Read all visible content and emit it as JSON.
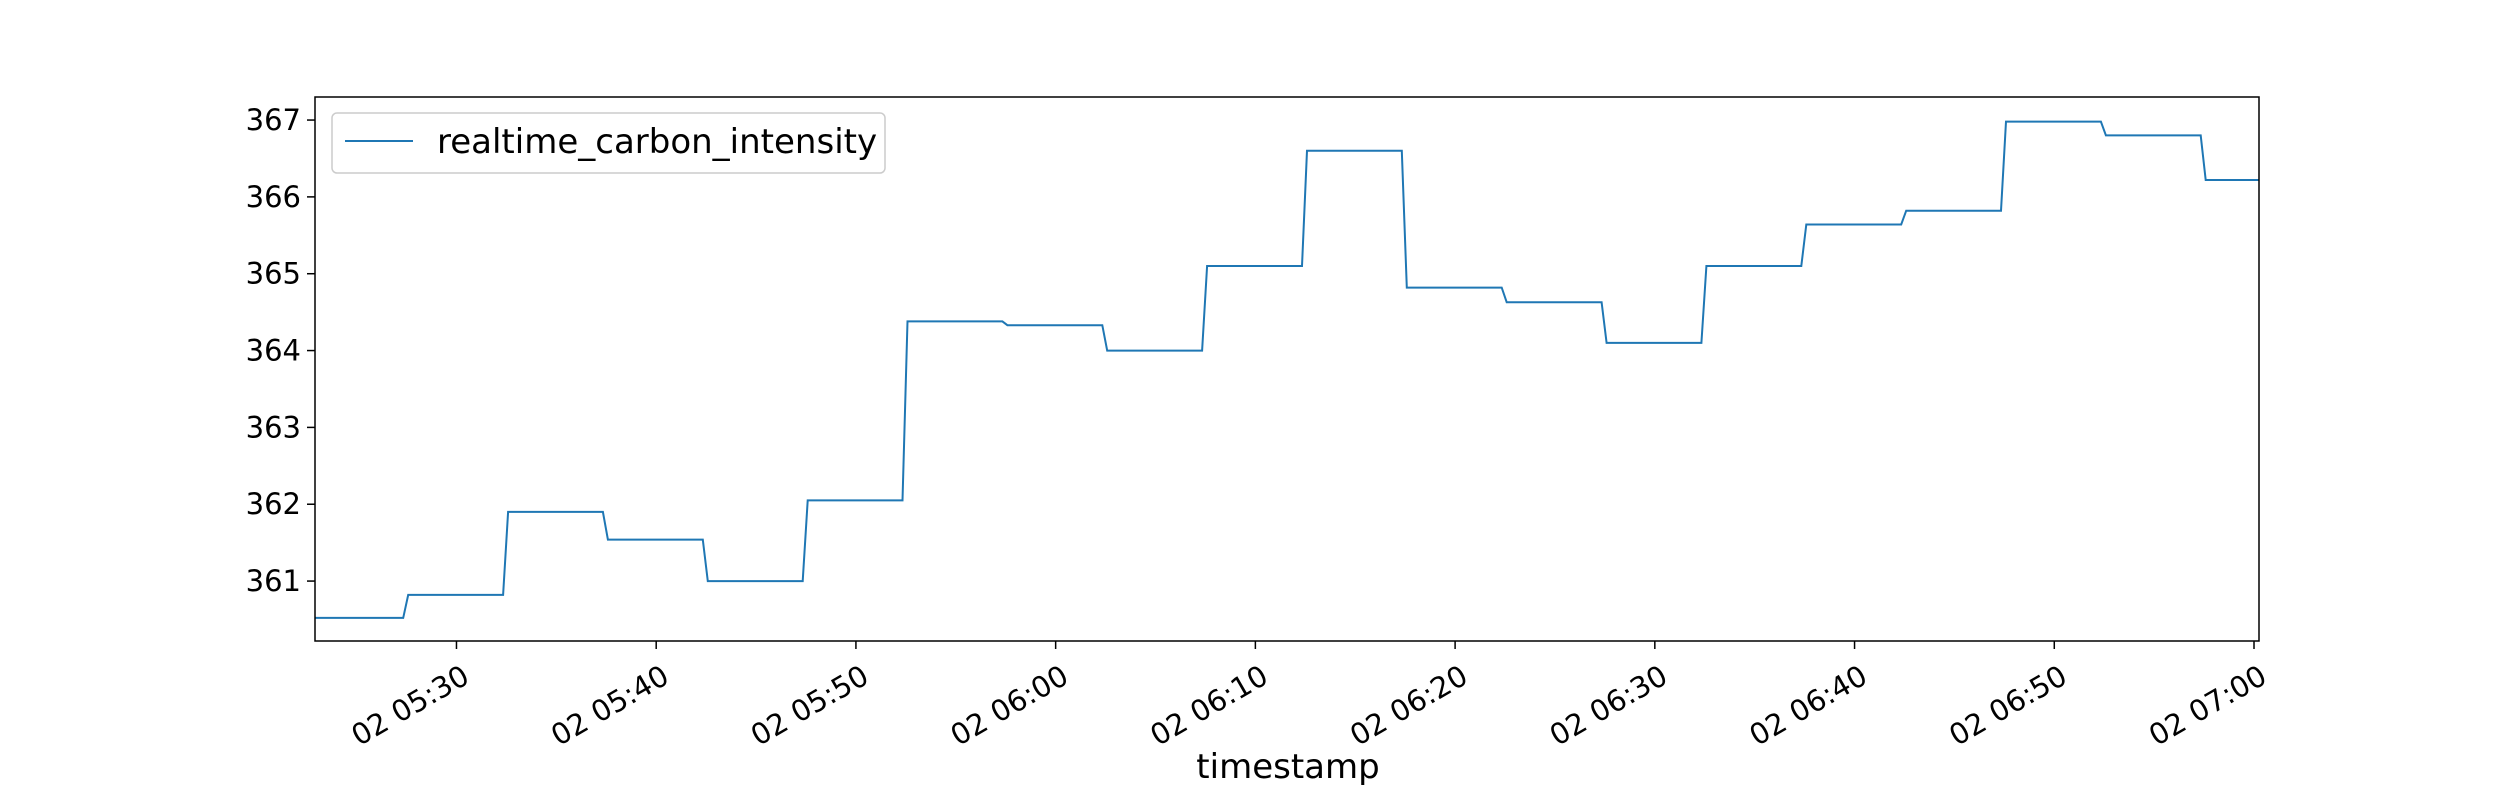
{
  "chart_data": {
    "type": "line",
    "title": "",
    "xlabel": "timestamp",
    "ylabel": "",
    "x_tick_labels": [
      "02 05:30",
      "02 05:40",
      "02 05:50",
      "02 06:00",
      "02 06:10",
      "02 06:20",
      "02 06:30",
      "02 06:40",
      "02 06:50",
      "02 07:00"
    ],
    "x_tick_times": [
      "05:30",
      "05:40",
      "05:50",
      "06:00",
      "06:10",
      "06:20",
      "06:30",
      "06:40",
      "06:50",
      "07:00"
    ],
    "xlim": [
      "05:22:55",
      "07:00:15"
    ],
    "y_ticks": [
      361,
      362,
      363,
      364,
      365,
      366,
      367
    ],
    "ylim": [
      360.22,
      367.3
    ],
    "grid": false,
    "legend": {
      "position": "top-left"
    },
    "series": [
      {
        "name": "realtime_carbon_intensity",
        "color": "#1f77b4",
        "points": [
          [
            "05:22:55",
            360.52
          ],
          [
            "05:27:20",
            360.52
          ],
          [
            "05:27:35",
            360.82
          ],
          [
            "05:32:20",
            360.82
          ],
          [
            "05:32:35",
            361.9
          ],
          [
            "05:37:20",
            361.9
          ],
          [
            "05:37:35",
            361.54
          ],
          [
            "05:42:20",
            361.54
          ],
          [
            "05:42:35",
            361.0
          ],
          [
            "05:47:20",
            361.0
          ],
          [
            "05:47:35",
            362.05
          ],
          [
            "05:52:20",
            362.05
          ],
          [
            "05:52:35",
            364.38
          ],
          [
            "05:57:20",
            364.38
          ],
          [
            "05:57:35",
            364.33
          ],
          [
            "06:02:20",
            364.33
          ],
          [
            "06:02:35",
            364.0
          ],
          [
            "06:07:20",
            364.0
          ],
          [
            "06:07:35",
            365.1
          ],
          [
            "06:12:20",
            365.1
          ],
          [
            "06:12:35",
            366.6
          ],
          [
            "06:17:20",
            366.6
          ],
          [
            "06:17:35",
            364.82
          ],
          [
            "06:22:20",
            364.82
          ],
          [
            "06:22:35",
            364.63
          ],
          [
            "06:27:20",
            364.63
          ],
          [
            "06:27:35",
            364.1
          ],
          [
            "06:32:20",
            364.1
          ],
          [
            "06:32:35",
            365.1
          ],
          [
            "06:37:20",
            365.1
          ],
          [
            "06:37:35",
            365.64
          ],
          [
            "06:42:20",
            365.64
          ],
          [
            "06:42:35",
            365.82
          ],
          [
            "06:47:20",
            365.82
          ],
          [
            "06:47:35",
            366.98
          ],
          [
            "06:52:20",
            366.98
          ],
          [
            "06:52:35",
            366.8
          ],
          [
            "06:57:20",
            366.8
          ],
          [
            "06:57:35",
            366.22
          ],
          [
            "07:00:15",
            366.22
          ]
        ]
      }
    ]
  }
}
